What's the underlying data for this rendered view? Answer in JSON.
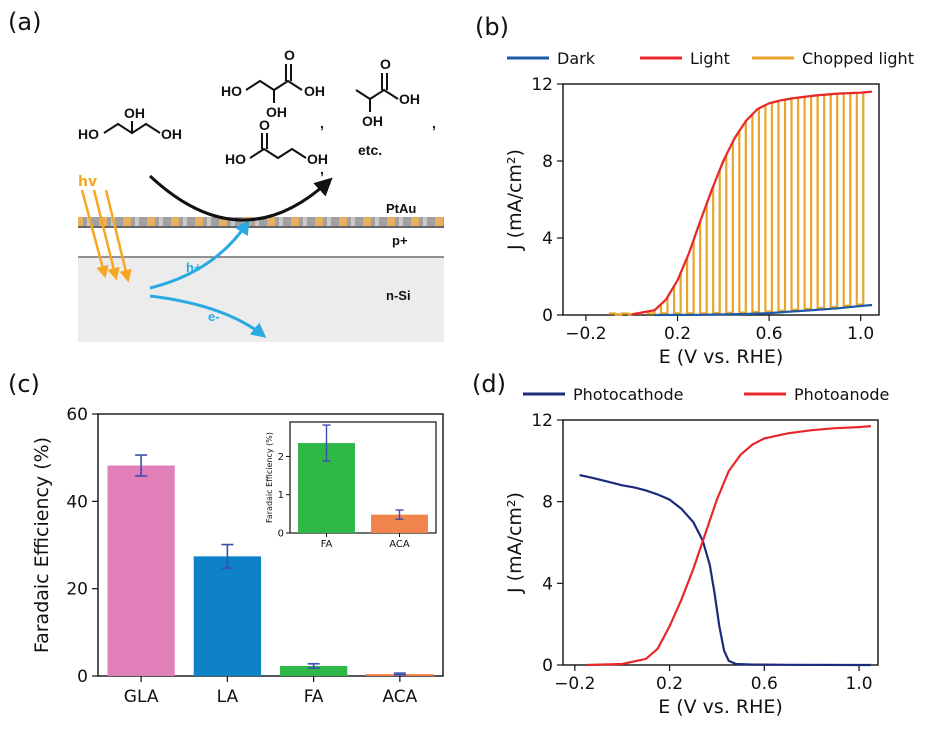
{
  "panels": {
    "a": "(a)",
    "b": "(b)",
    "c": "(c)",
    "d": "(d)"
  },
  "schematic": {
    "light_label": "hv",
    "layer_top": "PtAu",
    "layer_mid": "p+",
    "layer_bottom": "n-Si",
    "hole_label": "h+",
    "electron_label": "e-",
    "separator_1": ",",
    "separator_2": ",",
    "separator_3": ",",
    "etc": "etc.",
    "chem_labels": {
      "glycerol_ho_left": "HO",
      "glycerol_oh_top": "OH",
      "glycerol_oh_right": "OH",
      "glyceric_ho": "HO",
      "glyceric_oh_bottom": "OH",
      "glyceric_oh_right": "OH",
      "glyceric_o": "O",
      "dha_ho": "HO",
      "dha_oh": "OH",
      "dha_o": "O",
      "lactic_oh_right": "OH",
      "lactic_oh_bottom": "OH",
      "lactic_o": "O"
    },
    "colors": {
      "light": "#f5a623",
      "carrier": "#29aae1",
      "substrate": "#ececec",
      "pt_layer": "#9a9a9a"
    }
  },
  "chart_data": [
    {
      "id": "b",
      "type": "line",
      "xlabel": "E (V vs. RHE)",
      "ylabel": "J (mA/cm²)",
      "xlim": [
        -0.3,
        1.08
      ],
      "ylim": [
        0,
        12
      ],
      "xticks": [
        "−0.2",
        "0.2",
        "0.6",
        "1.0"
      ],
      "xtick_values": [
        -0.2,
        0.2,
        0.6,
        1.0
      ],
      "yticks": [
        "0",
        "4",
        "8",
        "12"
      ],
      "ytick_values": [
        0,
        4,
        8,
        12
      ],
      "legend": [
        "Dark",
        "Light",
        "Chopped light"
      ],
      "series": [
        {
          "name": "Dark",
          "color": "#1f5aa6",
          "x": [
            0.1,
            0.3,
            0.5,
            0.6,
            0.7,
            0.8,
            0.9,
            1.0,
            1.05
          ],
          "y": [
            0,
            0.01,
            0.05,
            0.1,
            0.18,
            0.26,
            0.35,
            0.47,
            0.52
          ]
        },
        {
          "name": "Light",
          "color": "#e8262b",
          "x": [
            0.0,
            0.1,
            0.15,
            0.2,
            0.25,
            0.3,
            0.35,
            0.4,
            0.45,
            0.5,
            0.55,
            0.6,
            0.65,
            0.7,
            0.8,
            0.9,
            1.0,
            1.05
          ],
          "y": [
            0.03,
            0.25,
            0.8,
            1.8,
            3.2,
            4.9,
            6.5,
            8.0,
            9.2,
            10.1,
            10.7,
            11.0,
            11.15,
            11.25,
            11.4,
            11.5,
            11.55,
            11.6
          ]
        },
        {
          "name": "Chopped light",
          "color": "#e8a52a",
          "x_start": -0.1,
          "x_end": 1.04,
          "pulses": 20
        }
      ]
    },
    {
      "id": "c",
      "type": "bar",
      "ylabel": "Faradaic Efficiency (%)",
      "ylim": [
        0,
        60
      ],
      "yticks": [
        "0",
        "20",
        "40",
        "60"
      ],
      "ytick_values": [
        0,
        20,
        40,
        60
      ],
      "categories": [
        "GLA",
        "LA",
        "FA",
        "ACA"
      ],
      "values": [
        48.2,
        27.4,
        2.3,
        0.45
      ],
      "errors": [
        2.4,
        2.7,
        0.5,
        0.2
      ],
      "colors": [
        "#e07fb8",
        "#0d82c8",
        "#2eb847",
        "#f1834c"
      ],
      "inset": {
        "ylabel": "Faradaic Efficiency (%)",
        "categories": [
          "FA",
          "ACA"
        ],
        "values": [
          2.35,
          0.48
        ],
        "errors": [
          0.47,
          0.12
        ],
        "colors": [
          "#2eb847",
          "#f1834c"
        ],
        "ylim": [
          0,
          2.9
        ],
        "yticks": [
          "0",
          "1",
          "2"
        ],
        "ytick_values": [
          0,
          1,
          2
        ]
      }
    },
    {
      "id": "d",
      "type": "line",
      "xlabel": "E (V vs. RHE)",
      "ylabel": "J (mA/cm²)",
      "xlim": [
        -0.25,
        1.08
      ],
      "ylim": [
        0,
        12
      ],
      "xticks": [
        "−0.2",
        "0.2",
        "0.6",
        "1.0"
      ],
      "xtick_values": [
        -0.2,
        0.2,
        0.6,
        1.0
      ],
      "yticks": [
        "0",
        "4",
        "8",
        "12"
      ],
      "ytick_values": [
        0,
        4,
        8,
        12
      ],
      "legend": [
        "Photocathode",
        "Photoanode"
      ],
      "series": [
        {
          "name": "Photocathode",
          "color": "#1c2a7a",
          "x": [
            -0.18,
            -0.12,
            -0.05,
            0.0,
            0.05,
            0.1,
            0.15,
            0.2,
            0.25,
            0.3,
            0.34,
            0.37,
            0.39,
            0.41,
            0.43,
            0.45,
            0.48,
            0.55,
            0.7,
            1.0,
            1.05
          ],
          "y": [
            9.3,
            9.15,
            8.95,
            8.8,
            8.7,
            8.55,
            8.35,
            8.1,
            7.65,
            7.0,
            6.1,
            4.9,
            3.5,
            1.9,
            0.7,
            0.2,
            0.05,
            0.02,
            0.01,
            0.0,
            0.0
          ]
        },
        {
          "name": "Photoanode",
          "color": "#e8262b",
          "x": [
            -0.15,
            0.0,
            0.1,
            0.15,
            0.2,
            0.25,
            0.3,
            0.35,
            0.4,
            0.45,
            0.5,
            0.55,
            0.6,
            0.7,
            0.8,
            0.9,
            1.0,
            1.05
          ],
          "y": [
            0.0,
            0.05,
            0.3,
            0.8,
            1.9,
            3.2,
            4.7,
            6.4,
            8.1,
            9.5,
            10.3,
            10.8,
            11.1,
            11.35,
            11.5,
            11.6,
            11.65,
            11.7
          ]
        }
      ]
    }
  ]
}
